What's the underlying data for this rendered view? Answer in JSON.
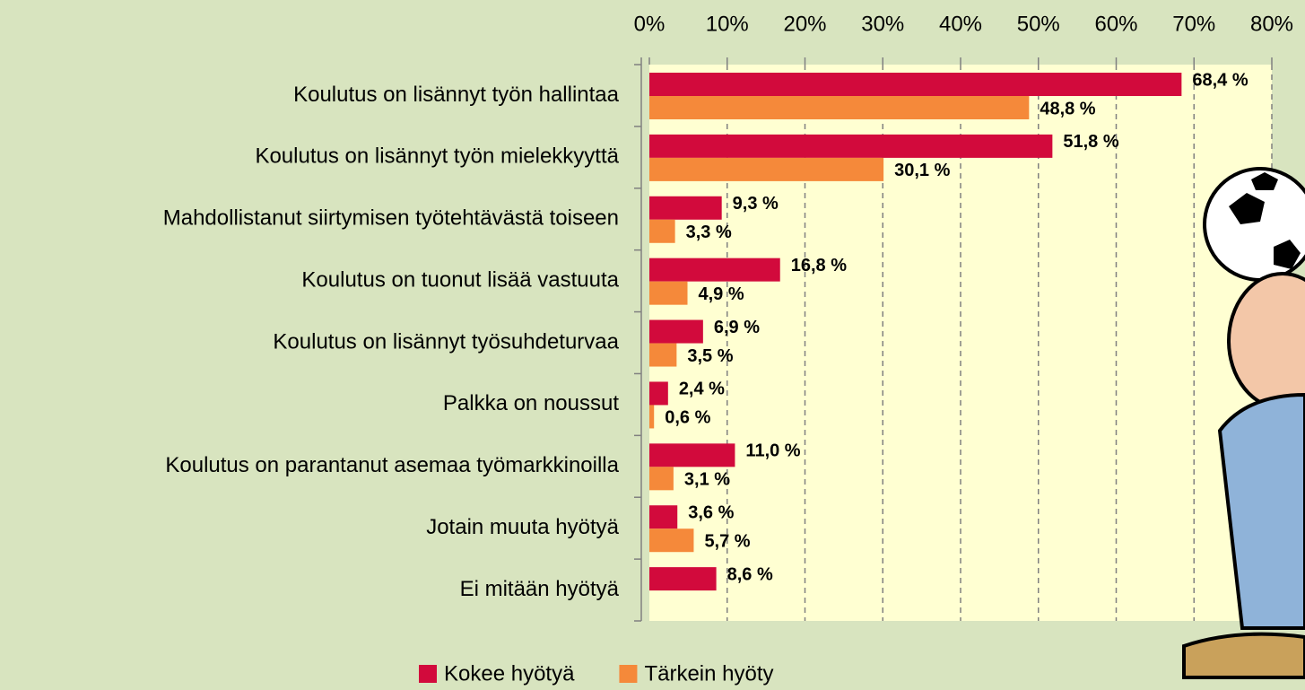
{
  "chart_data": {
    "type": "hbar",
    "categories": [
      "Koulutus on lisännyt työn hallintaa",
      "Koulutus on lisännyt työn mielekkyyttä",
      "Mahdollistanut siirtymisen työtehtävästä toiseen",
      "Koulutus on tuonut lisää vastuuta",
      "Koulutus on lisännyt työsuhdeturvaa",
      "Palkka on noussut",
      "Koulutus on parantanut asemaa työmarkkinoilla",
      "Jotain muuta hyötyä",
      "Ei mitään hyötyä"
    ],
    "series": [
      {
        "name": "Kokee hyötyä",
        "color": "#d20a3c",
        "values": [
          68.4,
          51.8,
          9.3,
          16.8,
          6.9,
          2.4,
          11.0,
          3.6,
          8.6
        ],
        "value_labels": [
          "68,4 %",
          "51,8 %",
          "9,3 %",
          "16,8 %",
          "6,9 %",
          "2,4 %",
          "11,0 %",
          "3,6 %",
          "8,6 %"
        ]
      },
      {
        "name": "Tärkein hyöty",
        "color": "#f5893a",
        "values": [
          48.8,
          30.1,
          3.3,
          4.9,
          3.5,
          0.6,
          3.1,
          5.7,
          null
        ],
        "value_labels": [
          "48,8 %",
          "30,1 %",
          "3,3 %",
          "4,9 %",
          "3,5 %",
          "0,6 %",
          "3,1 %",
          "5,7 %",
          null
        ]
      }
    ],
    "xlim": [
      0,
      80
    ],
    "xticks": [
      {
        "value": 0,
        "label": "0%"
      },
      {
        "value": 10,
        "label": "10%"
      },
      {
        "value": 20,
        "label": "20%"
      },
      {
        "value": 30,
        "label": "30%"
      },
      {
        "value": 40,
        "label": "40%"
      },
      {
        "value": 50,
        "label": "50%"
      },
      {
        "value": 60,
        "label": "60%"
      },
      {
        "value": 70,
        "label": "70%"
      },
      {
        "value": 80,
        "label": "80%"
      }
    ],
    "grid": true,
    "legend": "bottom"
  }
}
